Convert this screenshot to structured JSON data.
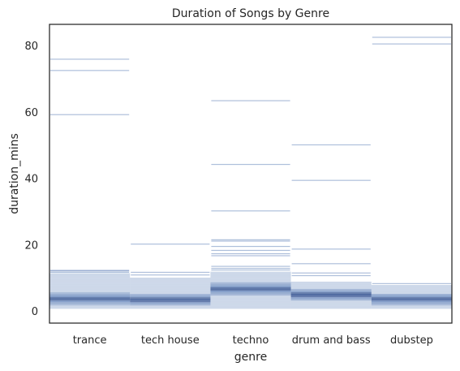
{
  "chart_data": {
    "type": "histogram",
    "title": "Duration of Songs by Genre",
    "xlabel": "genre",
    "ylabel": "duration_mins",
    "categories": [
      "trance",
      "tech house",
      "techno",
      "drum and bass",
      "dubstep"
    ],
    "ylim": [
      -3.5,
      86.5
    ],
    "yticks": [
      0,
      20,
      40,
      60,
      80
    ],
    "grid": false,
    "series": [
      {
        "name": "trance",
        "core_range": [
          0.8,
          11.5
        ],
        "dense_range": [
          2.8,
          5.2
        ],
        "peak": 3.8,
        "outliers": [
          11.8,
          12.2,
          12.4,
          59.3,
          72.6,
          76.0
        ]
      },
      {
        "name": "tech house",
        "core_range": [
          0.8,
          10.2
        ],
        "dense_range": [
          2.6,
          4.6
        ],
        "peak": 3.5,
        "outliers": [
          11.0,
          11.8,
          20.3
        ]
      },
      {
        "name": "techno",
        "core_range": [
          0.8,
          12.0
        ],
        "dense_range": [
          5.0,
          8.8
        ],
        "peak": 6.8,
        "outliers": [
          12.5,
          13.0,
          13.6,
          16.8,
          17.4,
          18.4,
          19.6,
          21.2,
          21.6,
          30.3,
          44.3,
          63.5
        ]
      },
      {
        "name": "drum and bass",
        "core_range": [
          0.8,
          9.0
        ],
        "dense_range": [
          3.6,
          6.4
        ],
        "peak": 5.0,
        "outliers": [
          10.8,
          11.6,
          14.4,
          18.8,
          39.5,
          50.2
        ]
      },
      {
        "name": "dubstep",
        "core_range": [
          0.8,
          8.0
        ],
        "dense_range": [
          2.6,
          4.8
        ],
        "peak": 3.7,
        "outliers": [
          8.4,
          80.6,
          82.6
        ]
      }
    ]
  }
}
